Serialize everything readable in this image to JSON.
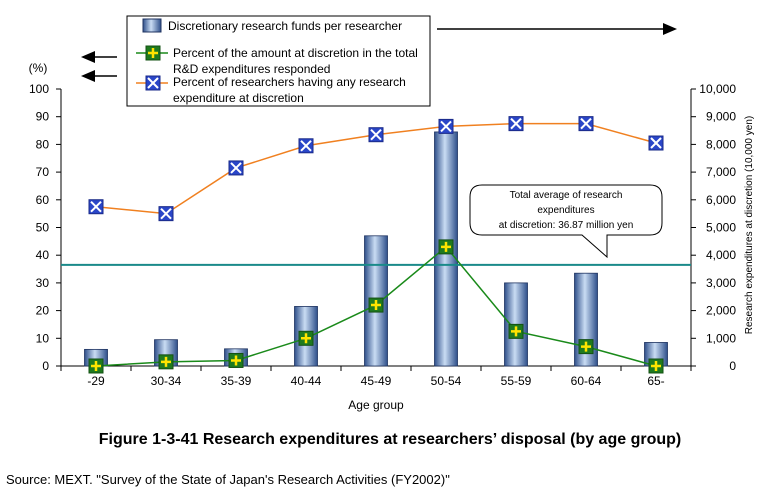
{
  "chart_data": {
    "type": "bar",
    "categories": [
      "-29",
      "30-34",
      "35-39",
      "40-44",
      "45-49",
      "50-54",
      "55-59",
      "60-64",
      "65-"
    ],
    "series": [
      {
        "name": "Discretionary research funds per researcher",
        "kind": "bar",
        "axis": "right",
        "color": "#7ea1d4",
        "values": [
          600,
          950,
          620,
          2150,
          4700,
          8450,
          3000,
          3350,
          850
        ]
      },
      {
        "name": "Percent of the amount at discretion in the total R&D expenditures responded",
        "kind": "line",
        "axis": "left",
        "color": "#1a8a1a",
        "marker": "green-square-plus",
        "values": [
          0,
          1.5,
          2,
          10,
          22,
          43,
          12.5,
          7,
          0
        ]
      },
      {
        "name": "Percent of researchers having any research expenditure at discretion",
        "kind": "line",
        "axis": "left",
        "color": "#f08020",
        "marker": "blue-square-x",
        "values": [
          57.5,
          55,
          71.5,
          79.5,
          83.5,
          86.5,
          87.5,
          87.5,
          80.5
        ]
      }
    ],
    "left_axis": {
      "unit_label": "(%)",
      "ylim": [
        0,
        100
      ],
      "ticks": [
        "0",
        "10",
        "20",
        "30",
        "40",
        "50",
        "60",
        "70",
        "80",
        "90",
        "100"
      ]
    },
    "right_axis": {
      "label": "Research expenditures at discretion (10,000 yen)",
      "ylim": [
        0,
        10000
      ],
      "ticks": [
        "0",
        "1,000",
        "2,000",
        "3,000",
        "4,000",
        "5,000",
        "6,000",
        "7,000",
        "8,000",
        "9,000",
        "10,000"
      ]
    },
    "xlabel": "Age group",
    "reference_line": {
      "value_pct_axis": 36.5,
      "color": "#1a8a8a"
    },
    "callout_lines": [
      "Total average of research",
      "expenditures",
      "at discretion: 36.87 million yen"
    ],
    "grid": false,
    "legend_placement": "top-center"
  },
  "figure_caption": "Figure 1-3-41    Research expenditures at researchers’ disposal (by age group)",
  "source_note": "Source: MEXT. \"Survey of the State of Japan's Research Activities (FY2002)\""
}
